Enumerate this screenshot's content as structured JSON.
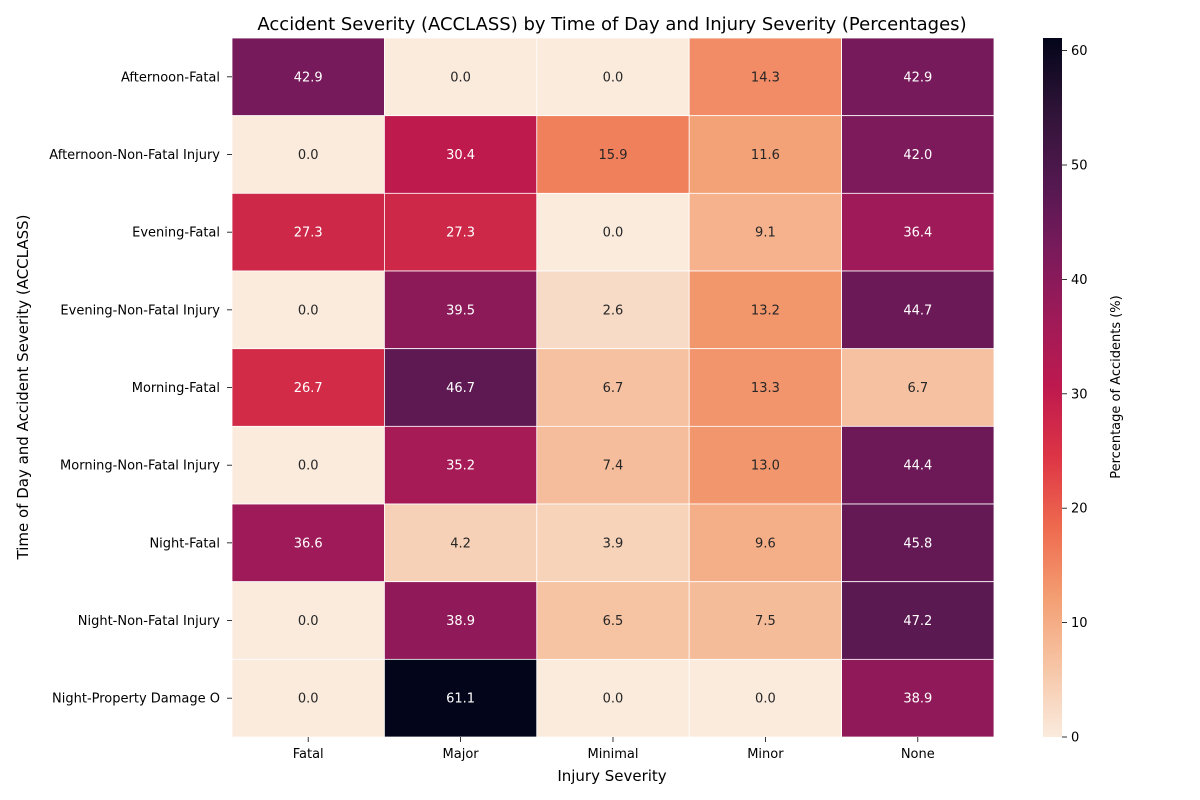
{
  "chart_data": {
    "type": "heatmap",
    "title": "Accident Severity (ACCLASS) by Time of Day and Injury Severity (Percentages)",
    "xlabel": "Injury Severity",
    "ylabel": "Time of Day and Accident Severity (ACCLASS)",
    "colorbar_label": "Percentage of Accidents (%)",
    "colormap": "rocket_r",
    "vmin": 0,
    "vmax": 61.1,
    "colorbar_ticks": [
      "0",
      "10",
      "20",
      "30",
      "40",
      "50",
      "60"
    ],
    "colorbar_tick_values": [
      0,
      10,
      20,
      30,
      40,
      50,
      60
    ],
    "columns": [
      "Fatal",
      "Major",
      "Minimal",
      "Minor",
      "None"
    ],
    "rows": [
      "Afternoon-Fatal",
      "Afternoon-Non-Fatal Injury",
      "Evening-Fatal",
      "Evening-Non-Fatal Injury",
      "Morning-Fatal",
      "Morning-Non-Fatal Injury",
      "Night-Fatal",
      "Night-Non-Fatal Injury",
      "Night-Property Damage O"
    ],
    "values": [
      [
        42.9,
        0.0,
        0.0,
        14.3,
        42.9
      ],
      [
        0.0,
        30.4,
        15.9,
        11.6,
        42.0
      ],
      [
        27.3,
        27.3,
        0.0,
        9.1,
        36.4
      ],
      [
        0.0,
        39.5,
        2.6,
        13.2,
        44.7
      ],
      [
        26.7,
        46.7,
        6.7,
        13.3,
        6.7
      ],
      [
        0.0,
        35.2,
        7.4,
        13.0,
        44.4
      ],
      [
        36.6,
        4.2,
        3.9,
        9.6,
        45.8
      ],
      [
        0.0,
        38.9,
        6.5,
        7.5,
        47.2
      ],
      [
        0.0,
        61.1,
        0.0,
        0.0,
        38.9
      ]
    ],
    "value_labels": [
      [
        "42.9",
        "0.0",
        "0.0",
        "14.3",
        "42.9"
      ],
      [
        "0.0",
        "30.4",
        "15.9",
        "11.6",
        "42.0"
      ],
      [
        "27.3",
        "27.3",
        "0.0",
        "9.1",
        "36.4"
      ],
      [
        "0.0",
        "39.5",
        "2.6",
        "13.2",
        "44.7"
      ],
      [
        "26.7",
        "46.7",
        "6.7",
        "13.3",
        "6.7"
      ],
      [
        "0.0",
        "35.2",
        "7.4",
        "13.0",
        "44.4"
      ],
      [
        "36.6",
        "4.2",
        "3.9",
        "9.6",
        "45.8"
      ],
      [
        "0.0",
        "38.9",
        "6.5",
        "7.5",
        "47.2"
      ],
      [
        "0.0",
        "61.1",
        "0.0",
        "0.0",
        "38.9"
      ]
    ],
    "grid": false
  }
}
